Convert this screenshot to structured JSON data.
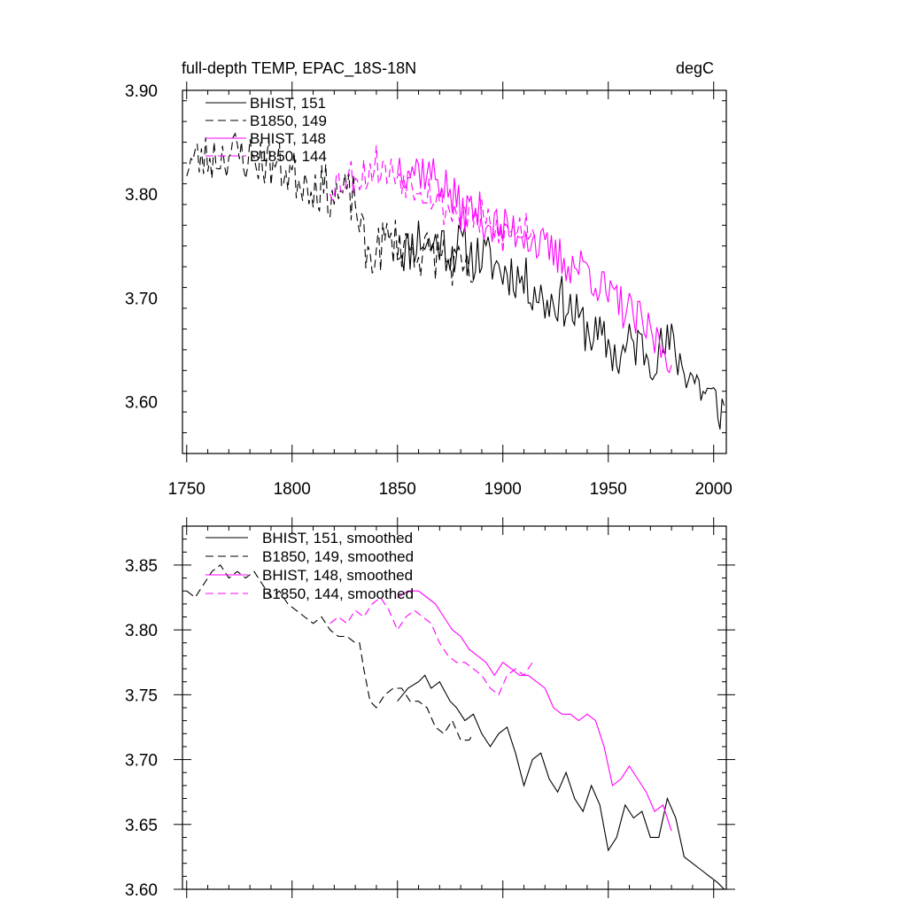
{
  "title_left": "full-depth TEMP, EPAC_18S-18N",
  "title_right": "degC",
  "colors": {
    "black": "#000000",
    "magenta": "#ff00ff"
  },
  "chart_data": [
    {
      "type": "line",
      "panel": "top",
      "xlim": [
        1748,
        2006
      ],
      "ylim": [
        3.55,
        3.9
      ],
      "xticks": [
        1750,
        1800,
        1850,
        1900,
        1950,
        2000
      ],
      "xtick_labels": [
        "1750",
        "1800",
        "1850",
        "1900",
        "1950",
        "2000"
      ],
      "yticks": [
        3.6,
        3.7,
        3.8,
        3.9
      ],
      "ytick_labels": [
        "3.60",
        "3.70",
        "3.80",
        "3.90"
      ],
      "legend": "top-left",
      "series": [
        {
          "name": "BHIST, 151",
          "color": "#000000",
          "dash": "solid",
          "x_start": 1850,
          "x_end": 2005,
          "x": [
            1850,
            1855,
            1860,
            1865,
            1870,
            1875,
            1880,
            1885,
            1890,
            1895,
            1900,
            1905,
            1910,
            1915,
            1920,
            1925,
            1930,
            1935,
            1940,
            1945,
            1950,
            1955,
            1960,
            1965,
            1970,
            1975,
            1980,
            1985,
            1990,
            1995,
            2000,
            2005
          ],
          "y": [
            3.75,
            3.745,
            3.76,
            3.75,
            3.755,
            3.745,
            3.75,
            3.74,
            3.74,
            3.735,
            3.725,
            3.725,
            3.715,
            3.71,
            3.695,
            3.7,
            3.695,
            3.68,
            3.67,
            3.66,
            3.655,
            3.64,
            3.655,
            3.655,
            3.645,
            3.65,
            3.655,
            3.635,
            3.625,
            3.61,
            3.6,
            3.59
          ],
          "noise": 0.025,
          "seed": 11
        },
        {
          "name": "B1850, 149",
          "color": "#000000",
          "dash": "dashed",
          "x_start": 1750,
          "x_end": 1886,
          "x": [
            1750,
            1760,
            1770,
            1780,
            1790,
            1800,
            1810,
            1820,
            1830,
            1835,
            1840,
            1845,
            1850,
            1855,
            1860,
            1865,
            1870,
            1875,
            1880,
            1886
          ],
          "y": [
            3.83,
            3.835,
            3.84,
            3.835,
            3.83,
            3.82,
            3.81,
            3.8,
            3.795,
            3.74,
            3.745,
            3.755,
            3.755,
            3.75,
            3.745,
            3.74,
            3.745,
            3.735,
            3.725,
            3.72
          ],
          "noise": 0.025,
          "seed": 23
        },
        {
          "name": "BHIST, 148",
          "color": "#ff00ff",
          "dash": "solid",
          "x_start": 1850,
          "x_end": 1980,
          "x": [
            1850,
            1855,
            1860,
            1865,
            1870,
            1875,
            1880,
            1885,
            1890,
            1895,
            1900,
            1905,
            1910,
            1915,
            1920,
            1925,
            1930,
            1935,
            1940,
            1945,
            1950,
            1955,
            1960,
            1965,
            1970,
            1975,
            1980
          ],
          "y": [
            3.83,
            3.825,
            3.825,
            3.82,
            3.815,
            3.8,
            3.785,
            3.785,
            3.78,
            3.77,
            3.765,
            3.765,
            3.765,
            3.755,
            3.745,
            3.74,
            3.735,
            3.73,
            3.73,
            3.715,
            3.7,
            3.695,
            3.685,
            3.675,
            3.665,
            3.655,
            3.645
          ],
          "noise": 0.022,
          "seed": 37
        },
        {
          "name": "B1850, 144",
          "color": "#ff00ff",
          "dash": "dashed",
          "x_start": 1818,
          "x_end": 1915,
          "x": [
            1818,
            1825,
            1830,
            1835,
            1840,
            1845,
            1850,
            1855,
            1860,
            1865,
            1870,
            1875,
            1880,
            1885,
            1890,
            1895,
            1900,
            1905,
            1910,
            1915
          ],
          "y": [
            3.81,
            3.815,
            3.82,
            3.82,
            3.83,
            3.82,
            3.82,
            3.815,
            3.81,
            3.805,
            3.79,
            3.785,
            3.78,
            3.78,
            3.775,
            3.765,
            3.76,
            3.765,
            3.77,
            3.77
          ],
          "noise": 0.02,
          "seed": 53
        }
      ]
    },
    {
      "type": "line",
      "panel": "bottom",
      "xlim": [
        1748,
        2006
      ],
      "ylim": [
        3.6,
        3.88
      ],
      "xticks": [
        1750,
        1800,
        1850,
        1900,
        1950,
        2000
      ],
      "yticks": [
        3.6,
        3.65,
        3.7,
        3.75,
        3.8,
        3.85
      ],
      "ytick_labels": [
        "3.60",
        "3.65",
        "3.70",
        "3.75",
        "3.80",
        "3.85"
      ],
      "legend": "top-left",
      "series": [
        {
          "name": "BHIST, 151, smoothed",
          "color": "#000000",
          "dash": "solid",
          "x": [
            1850,
            1855,
            1860,
            1863,
            1866,
            1870,
            1875,
            1878,
            1882,
            1886,
            1890,
            1894,
            1898,
            1902,
            1906,
            1910,
            1914,
            1918,
            1922,
            1926,
            1930,
            1934,
            1938,
            1942,
            1946,
            1950,
            1954,
            1958,
            1962,
            1966,
            1970,
            1974,
            1978,
            1982,
            1986,
            1990,
            1994,
            1998,
            2002,
            2005
          ],
          "y": [
            3.745,
            3.755,
            3.76,
            3.765,
            3.755,
            3.76,
            3.745,
            3.74,
            3.73,
            3.735,
            3.72,
            3.71,
            3.72,
            3.725,
            3.705,
            3.68,
            3.7,
            3.705,
            3.685,
            3.675,
            3.69,
            3.67,
            3.66,
            3.68,
            3.665,
            3.63,
            3.64,
            3.665,
            3.655,
            3.66,
            3.64,
            3.64,
            3.67,
            3.655,
            3.625,
            3.62,
            3.615,
            3.61,
            3.605,
            3.6
          ]
        },
        {
          "name": "B1850, 149, smoothed",
          "color": "#000000",
          "dash": "dashed",
          "x": [
            1750,
            1754,
            1758,
            1762,
            1766,
            1770,
            1774,
            1778,
            1782,
            1786,
            1790,
            1794,
            1798,
            1802,
            1806,
            1810,
            1814,
            1818,
            1822,
            1826,
            1830,
            1832,
            1834,
            1837,
            1840,
            1844,
            1848,
            1852,
            1856,
            1860,
            1864,
            1868,
            1872,
            1876,
            1880,
            1884,
            1886
          ],
          "y": [
            3.83,
            3.825,
            3.835,
            3.845,
            3.85,
            3.84,
            3.845,
            3.84,
            3.845,
            3.835,
            3.825,
            3.83,
            3.82,
            3.815,
            3.81,
            3.805,
            3.81,
            3.8,
            3.795,
            3.795,
            3.79,
            3.79,
            3.77,
            3.745,
            3.74,
            3.75,
            3.755,
            3.755,
            3.745,
            3.745,
            3.74,
            3.725,
            3.72,
            3.73,
            3.715,
            3.715,
            3.72
          ]
        },
        {
          "name": "BHIST, 148, smoothed",
          "color": "#ff00ff",
          "dash": "solid",
          "x": [
            1850,
            1855,
            1860,
            1864,
            1868,
            1872,
            1876,
            1880,
            1884,
            1888,
            1892,
            1896,
            1900,
            1904,
            1908,
            1912,
            1916,
            1920,
            1924,
            1928,
            1932,
            1936,
            1940,
            1944,
            1948,
            1952,
            1956,
            1960,
            1964,
            1968,
            1972,
            1976,
            1980
          ],
          "y": [
            3.825,
            3.83,
            3.83,
            3.825,
            3.82,
            3.81,
            3.8,
            3.795,
            3.785,
            3.78,
            3.775,
            3.765,
            3.775,
            3.77,
            3.765,
            3.765,
            3.76,
            3.755,
            3.74,
            3.735,
            3.735,
            3.73,
            3.735,
            3.73,
            3.71,
            3.68,
            3.685,
            3.695,
            3.685,
            3.675,
            3.66,
            3.665,
            3.645
          ]
        },
        {
          "name": "B1850, 144, smoothed",
          "color": "#ff00ff",
          "dash": "dashed",
          "x": [
            1818,
            1822,
            1826,
            1830,
            1834,
            1838,
            1842,
            1846,
            1850,
            1854,
            1858,
            1862,
            1866,
            1870,
            1874,
            1878,
            1882,
            1886,
            1890,
            1894,
            1898,
            1902,
            1906,
            1910,
            1914
          ],
          "y": [
            3.805,
            3.81,
            3.805,
            3.815,
            3.81,
            3.82,
            3.825,
            3.815,
            3.8,
            3.81,
            3.815,
            3.81,
            3.805,
            3.79,
            3.78,
            3.775,
            3.775,
            3.77,
            3.765,
            3.755,
            3.75,
            3.765,
            3.77,
            3.765,
            3.775
          ]
        }
      ]
    }
  ]
}
